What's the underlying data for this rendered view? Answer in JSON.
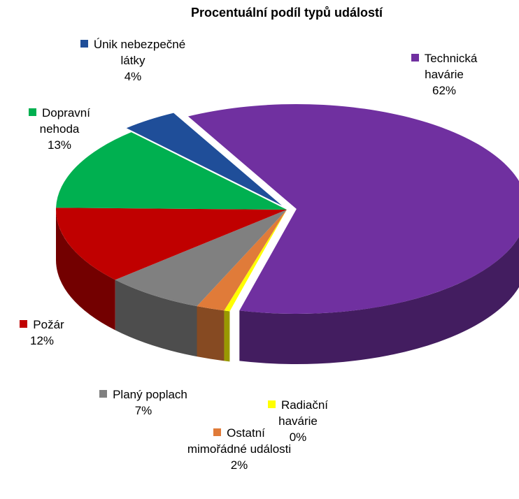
{
  "chart_data": {
    "type": "pie3d",
    "title": "Procentuální podíl typů událostí",
    "categories": [
      "Technická havárie",
      "Radiační havárie",
      "Ostatní mimořádné události",
      "Planý poplach",
      "Požár",
      "Dopravní nehoda",
      "Únik nebezpečné látky"
    ],
    "values": [
      62,
      0.4,
      2,
      7,
      12,
      13,
      4
    ],
    "value_labels": [
      "62%",
      "0%",
      "2%",
      "7%",
      "12%",
      "13%",
      "4%"
    ],
    "colors": [
      "#7030a0",
      "#ffff00",
      "#e07b39",
      "#808080",
      "#c00000",
      "#00b050",
      "#1f4e99"
    ]
  }
}
